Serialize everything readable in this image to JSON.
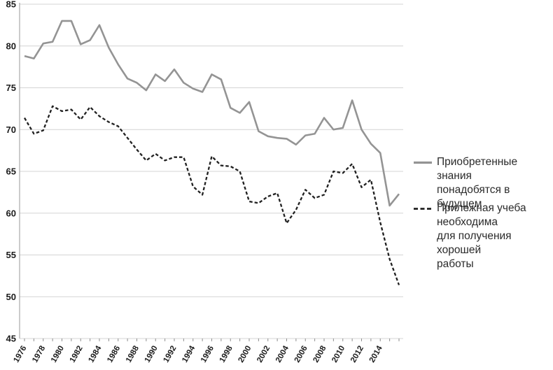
{
  "chart_data": {
    "type": "line",
    "title": "",
    "xlabel": "",
    "ylabel": "",
    "grid": true,
    "legend_position": "right",
    "ylim": [
      45,
      85
    ],
    "y_ticks": [
      45,
      50,
      55,
      60,
      65,
      70,
      75,
      80,
      85
    ],
    "x_years": [
      1976,
      1977,
      1978,
      1979,
      1980,
      1981,
      1982,
      1983,
      1984,
      1985,
      1986,
      1987,
      1988,
      1989,
      1990,
      1991,
      1992,
      1993,
      1994,
      1995,
      1996,
      1997,
      1998,
      1999,
      2000,
      2001,
      2002,
      2003,
      2004,
      2005,
      2006,
      2007,
      2008,
      2009,
      2010,
      2011,
      2012,
      2013,
      2014,
      2015,
      2016
    ],
    "x_tick_labels": [
      "1976",
      "1978",
      "1980",
      "1982",
      "1984",
      "1986",
      "1988",
      "1990",
      "1992",
      "1994",
      "1996",
      "1998",
      "2000",
      "2002",
      "2004",
      "2006",
      "2008",
      "2010",
      "2012",
      "2014"
    ],
    "series": [
      {
        "name": "Приобретенные знания понадобятся в будущем",
        "line_style": "solid",
        "color": "#949494",
        "values": [
          78.8,
          78.5,
          80.3,
          80.5,
          83.0,
          83.0,
          80.2,
          80.7,
          82.5,
          79.8,
          77.8,
          76.1,
          75.6,
          74.7,
          76.6,
          75.8,
          77.2,
          75.6,
          74.9,
          74.5,
          76.6,
          76.0,
          72.6,
          72.0,
          73.3,
          69.8,
          69.2,
          69.0,
          68.9,
          68.2,
          69.3,
          69.5,
          71.4,
          70.0,
          70.2,
          73.5,
          70.0,
          68.3,
          67.2,
          60.9,
          62.3
        ]
      },
      {
        "name": "Прилежная учеба необходима для получения хорошей работы",
        "line_style": "dashed",
        "color": "#212121",
        "values": [
          71.4,
          69.5,
          69.9,
          72.8,
          72.2,
          72.4,
          71.2,
          72.7,
          71.6,
          70.9,
          70.4,
          69.0,
          67.6,
          66.3,
          67.1,
          66.3,
          66.7,
          66.7,
          63.2,
          62.2,
          66.8,
          65.7,
          65.6,
          65.0,
          61.4,
          61.2,
          62.0,
          62.4,
          58.8,
          60.4,
          62.8,
          61.8,
          62.2,
          65.0,
          64.8,
          65.9,
          63.1,
          64.0,
          58.9,
          54.5,
          51.4
        ]
      }
    ]
  },
  "legend": {
    "entry1_lines": [
      "Приобретенные знания",
      "понадобятся в будущем"
    ],
    "entry2_lines": [
      "Прилежная учеба",
      "необходима",
      "для получения хорошей",
      "работы"
    ]
  },
  "style": {
    "gridline_color": "#d4d4d4",
    "axis_line_color": "#ababab",
    "tick_color": "#8f8f8f",
    "label_color": "#1c1c1c",
    "legend_text_color": "#2b2b2b"
  }
}
